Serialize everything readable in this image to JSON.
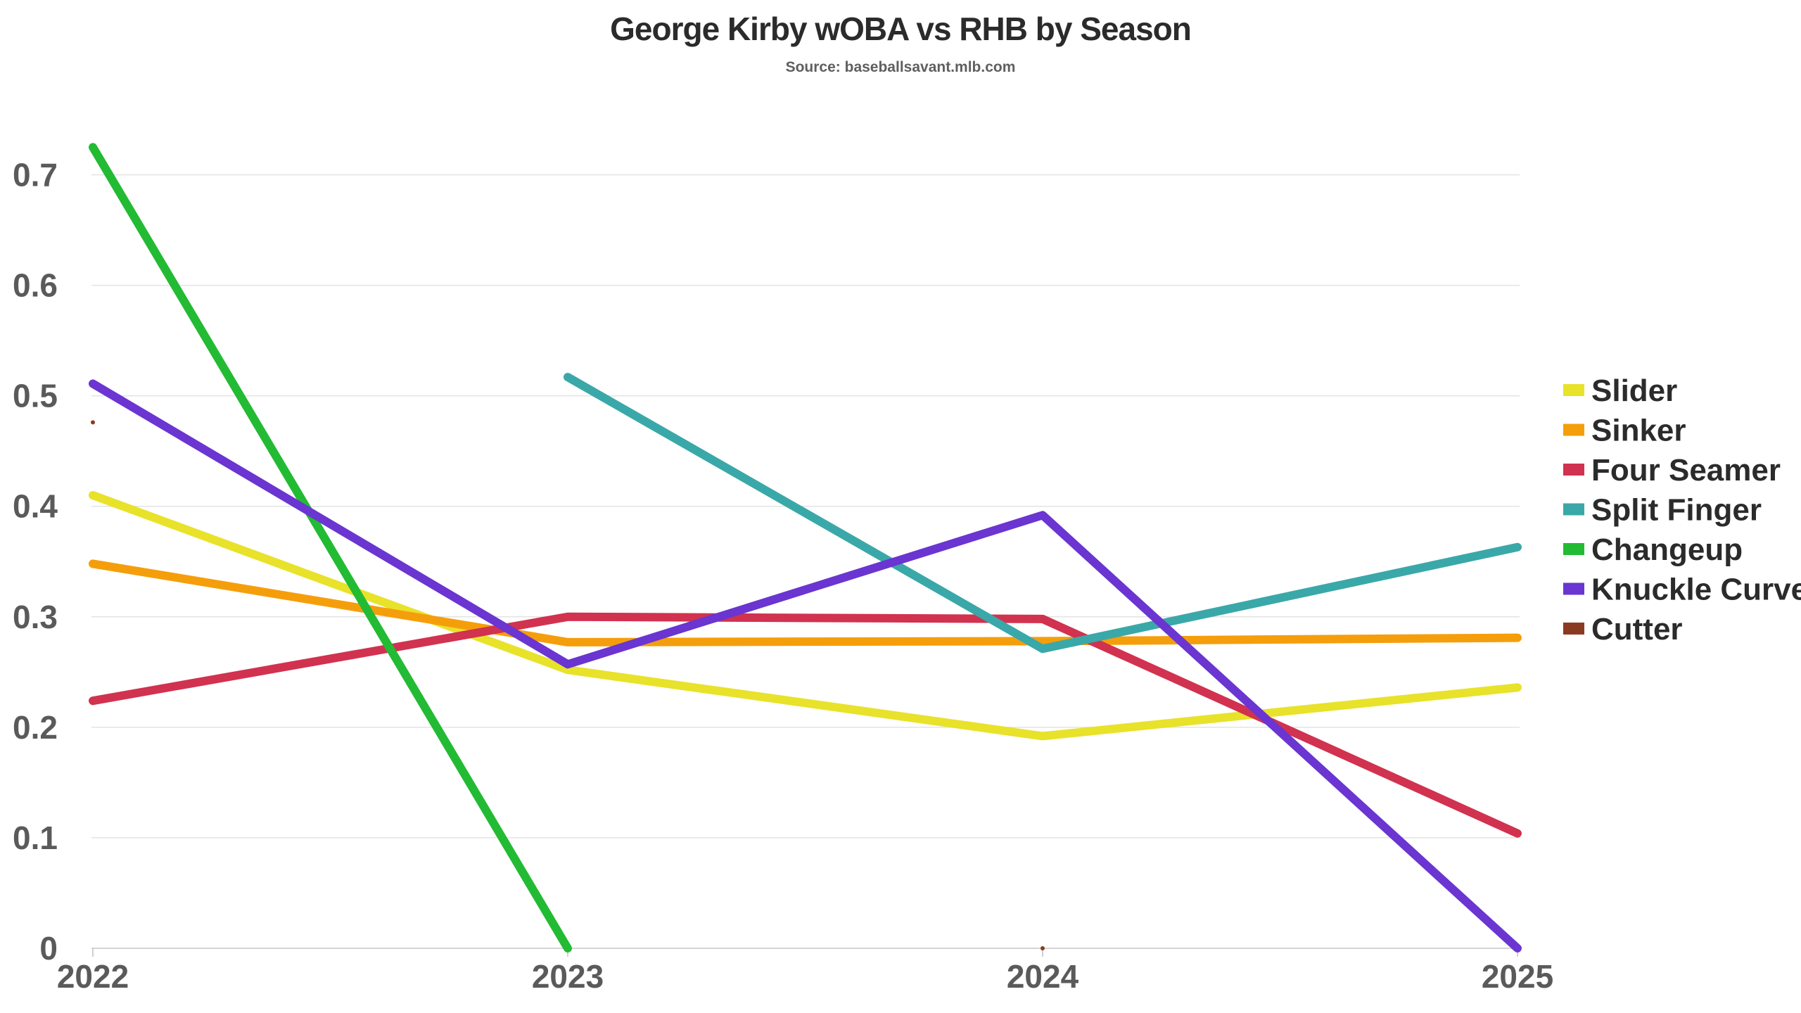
{
  "header": {
    "title": "George Kirby wOBA vs RHB by Season",
    "subtitle": "Source: baseballsavant.mlb.com"
  },
  "chart_data": {
    "type": "line",
    "title": "George Kirby wOBA vs RHB by Season",
    "subtitle": "Source: baseballsavant.mlb.com",
    "xlabel": "",
    "ylabel": "",
    "x": [
      "2022",
      "2023",
      "2024",
      "2025"
    ],
    "yticks": [
      "0",
      "0.1",
      "0.2",
      "0.3",
      "0.4",
      "0.5",
      "0.6",
      "0.7"
    ],
    "ylim": [
      0,
      0.75
    ],
    "grid": true,
    "legend_position": "right",
    "series": [
      {
        "name": "Slider",
        "color": "#E8E22A",
        "values": [
          0.41,
          0.252,
          0.192,
          0.236
        ]
      },
      {
        "name": "Sinker",
        "color": "#F59E0B",
        "values": [
          0.348,
          0.277,
          0.278,
          0.281
        ]
      },
      {
        "name": "Four Seamer",
        "color": "#D1324F",
        "values": [
          0.224,
          0.3,
          0.298,
          0.104
        ]
      },
      {
        "name": "Split Finger",
        "color": "#3AA8A8",
        "values": [
          null,
          0.517,
          0.271,
          0.363
        ]
      },
      {
        "name": "Changeup",
        "color": "#22BB33",
        "values": [
          0.725,
          0.0,
          null,
          null
        ]
      },
      {
        "name": "Knuckle Curve",
        "color": "#6A35D0",
        "values": [
          0.511,
          0.257,
          0.392,
          0.0
        ]
      },
      {
        "name": "Cutter",
        "color": "#8B3A22",
        "values": [
          0.476,
          null,
          0.0,
          null
        ]
      }
    ]
  }
}
